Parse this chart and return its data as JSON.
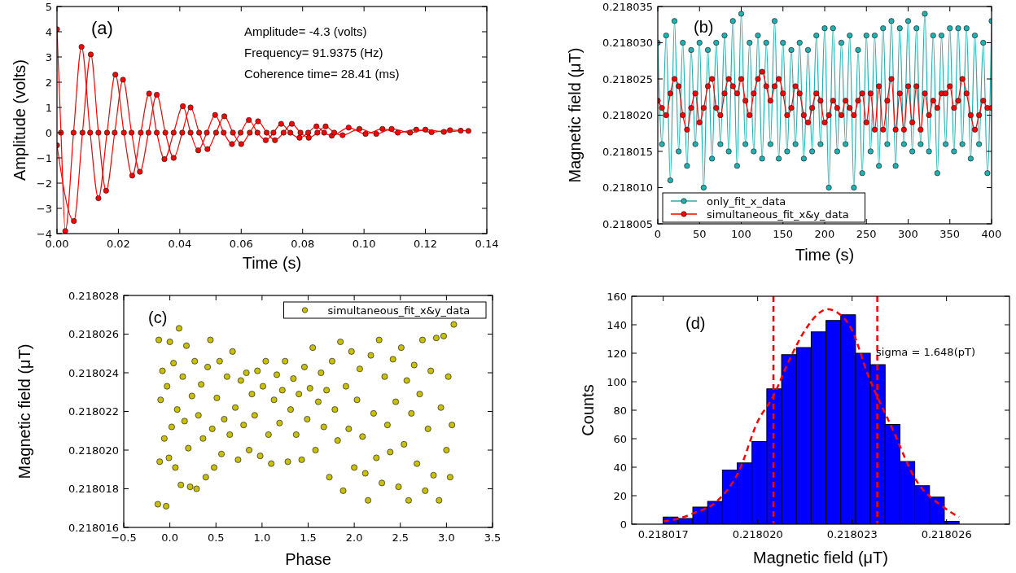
{
  "chart_data": [
    {
      "type": "line",
      "xlabel": "Time (s)",
      "ylabel": "Amplitude (volts)",
      "marker": "circle",
      "xlim": [
        0,
        0.14
      ],
      "ylim": [
        -4,
        5
      ],
      "xticks": [
        {
          "value": 0,
          "label": "0.00"
        },
        {
          "value": 0.02,
          "label": "0.02"
        },
        {
          "value": 0.04,
          "label": "0.04"
        },
        {
          "value": 0.06,
          "label": "0.06"
        },
        {
          "value": 0.08,
          "label": "0.08"
        },
        {
          "value": 0.1,
          "label": "0.10"
        },
        {
          "value": 0.12,
          "label": "0.12"
        },
        {
          "value": 0.14,
          "label": "0.14"
        }
      ],
      "yticks": [
        {
          "value": -4,
          "label": "−4"
        },
        {
          "value": -3,
          "label": "−3"
        },
        {
          "value": -2,
          "label": "−2"
        },
        {
          "value": -1,
          "label": "−1"
        },
        0,
        1,
        2,
        3,
        4,
        5
      ],
      "annotations": [
        "(a)",
        "Amplitude= -4.3 (volts)",
        "Frequency= 91.9375 (Hz)",
        "Coherence time= 28.41 (ms)"
      ],
      "series": [
        {
          "color": "#ff0000",
          "x": [
            0,
            0.0013,
            0.0027,
            0.0054,
            0.008,
            0.0108,
            0.0135,
            0.0163,
            0.019,
            0.0218,
            0.0245,
            0.0273,
            0.03,
            0.0325,
            0.035,
            0.038,
            0.041,
            0.0435,
            0.046,
            0.0488,
            0.0515,
            0.0543,
            0.057,
            0.0598,
            0.0625,
            0.0653,
            0.068,
            0.0705,
            0.073,
            0.076,
            0.079,
            0.0818,
            0.0845,
            0.087,
            0.0895,
            0.095,
            0.1005,
            0.106,
            0.111,
            0.117,
            0.122,
            0.128,
            0.134
          ],
          "values": [
            4.1,
            0,
            -3.9,
            0,
            3.4,
            0,
            -2.6,
            0,
            2.3,
            0,
            -1.7,
            0,
            1.55,
            0,
            -1.05,
            0,
            1.05,
            0,
            -0.7,
            0,
            0.7,
            0,
            -0.45,
            0,
            0.5,
            0,
            -0.3,
            0,
            0.35,
            0,
            -0.2,
            0,
            0.25,
            0,
            -0.12,
            0.2,
            -0.05,
            0.15,
            0,
            0.12,
            0.02,
            0.1,
            0.07
          ]
        },
        {
          "color": "#ff0000",
          "x": [
            0,
            0.0055,
            0.0083,
            0.011,
            0.0135,
            0.016,
            0.0188,
            0.0215,
            0.0243,
            0.027,
            0.0298,
            0.0325,
            0.0353,
            0.038,
            0.0408,
            0.0435,
            0.0463,
            0.049,
            0.0518,
            0.0545,
            0.0573,
            0.06,
            0.0628,
            0.0655,
            0.0683,
            0.071,
            0.0738,
            0.0765,
            0.0793,
            0.082,
            0.0848,
            0.0875,
            0.0903,
            0.093,
            0.0985,
            0.104,
            0.109,
            0.115,
            0.12,
            0.126,
            0.1315
          ],
          "values": [
            -0.5,
            -3.5,
            0,
            3.1,
            0,
            -2.3,
            0,
            2.1,
            0,
            -1.55,
            0,
            1.5,
            0,
            -1.0,
            0,
            1.0,
            0,
            -0.65,
            0,
            0.65,
            0,
            -0.45,
            0,
            0.45,
            0,
            -0.3,
            0,
            0.35,
            0,
            -0.2,
            0,
            0.25,
            0,
            -0.1,
            0.15,
            -0.05,
            0.15,
            0,
            0.12,
            0.03,
            0.08
          ]
        }
      ]
    },
    {
      "type": "line",
      "xlabel": "Time (s)",
      "ylabel": "Magnetic field (μT)",
      "marker": "circle",
      "legend": "bottom left",
      "xlim": [
        0,
        400
      ],
      "ylim": [
        0.218005,
        0.218035
      ],
      "xticks": [
        0,
        50,
        100,
        150,
        200,
        250,
        300,
        350,
        400
      ],
      "yticks": [
        0.218005,
        {
          "value": 0.21801,
          "label": "0.218010"
        },
        0.218015,
        {
          "value": 0.21802,
          "label": "0.218020"
        },
        0.218025,
        {
          "value": 0.21803,
          "label": "0.218030"
        },
        0.218035
      ],
      "annotations": [
        "(b)"
      ],
      "x": [
        0,
        5,
        10,
        15,
        20,
        25,
        30,
        35,
        40,
        45,
        50,
        55,
        60,
        65,
        70,
        75,
        80,
        85,
        90,
        95,
        100,
        105,
        110,
        115,
        120,
        125,
        130,
        135,
        140,
        145,
        150,
        155,
        160,
        165,
        170,
        175,
        180,
        185,
        190,
        195,
        200,
        205,
        210,
        215,
        220,
        225,
        230,
        235,
        240,
        245,
        250,
        255,
        260,
        265,
        270,
        275,
        280,
        285,
        290,
        295,
        300,
        305,
        310,
        315,
        320,
        325,
        330,
        335,
        340,
        345,
        350,
        355,
        360,
        365,
        370,
        375,
        380,
        385,
        390,
        395,
        400
      ],
      "series": [
        {
          "name": "only_fit_x_data",
          "color": "#20b2b2",
          "values": [
            0.21803,
            0.218016,
            0.218031,
            0.218011,
            0.218033,
            0.218015,
            0.21803,
            0.218013,
            0.218029,
            0.218016,
            0.21803,
            0.21801,
            0.218029,
            0.218014,
            0.21803,
            0.218016,
            0.218031,
            0.218015,
            0.218033,
            0.218013,
            0.218034,
            0.218016,
            0.21803,
            0.218015,
            0.218031,
            0.218014,
            0.21803,
            0.218016,
            0.218033,
            0.218014,
            0.21803,
            0.218015,
            0.218029,
            0.218016,
            0.21803,
            0.218014,
            0.218029,
            0.218015,
            0.218031,
            0.218016,
            0.218032,
            0.21801,
            0.218032,
            0.218015,
            0.21803,
            0.218016,
            0.218031,
            0.21801,
            0.218029,
            0.218012,
            0.218031,
            0.218015,
            0.218031,
            0.218013,
            0.218032,
            0.218016,
            0.218033,
            0.218013,
            0.218032,
            0.218016,
            0.218033,
            0.218015,
            0.218032,
            0.218016,
            0.218034,
            0.218015,
            0.218031,
            0.218012,
            0.218031,
            0.218016,
            0.218032,
            0.218015,
            0.218032,
            0.218016,
            0.218032,
            0.218014,
            0.218031,
            0.218016,
            0.21803,
            0.218012,
            0.218033
          ]
        },
        {
          "name": "simultaneous_fit_x&y_data",
          "color": "#ff0000",
          "values": [
            0.218022,
            0.218021,
            0.21802,
            0.218023,
            0.218025,
            0.218024,
            0.21802,
            0.218018,
            0.218021,
            0.218023,
            0.218019,
            0.218021,
            0.218024,
            0.218025,
            0.218021,
            0.21802,
            0.218023,
            0.218025,
            0.218024,
            0.218023,
            0.218025,
            0.218022,
            0.21802,
            0.218023,
            0.218025,
            0.218026,
            0.218024,
            0.218022,
            0.218024,
            0.218025,
            0.218023,
            0.21802,
            0.218021,
            0.218024,
            0.218023,
            0.21802,
            0.218019,
            0.218021,
            0.218023,
            0.218022,
            0.218019,
            0.21802,
            0.218022,
            0.218021,
            0.21802,
            0.218022,
            0.218021,
            0.21802,
            0.218022,
            0.218023,
            0.218019,
            0.218023,
            0.218018,
            0.218024,
            0.218018,
            0.218022,
            0.218025,
            0.218018,
            0.218023,
            0.218018,
            0.218024,
            0.218019,
            0.218024,
            0.218018,
            0.218023,
            0.21802,
            0.218022,
            0.218021,
            0.218023,
            0.218023,
            0.218024,
            0.218021,
            0.218022,
            0.218025,
            0.218023,
            0.21802,
            0.218018,
            0.21802,
            0.218022,
            0.218021,
            0.218021
          ]
        }
      ]
    },
    {
      "type": "scatter",
      "xlabel": "Phase",
      "ylabel": "Magnetic field (μT)",
      "marker": "circle",
      "legend": "top right",
      "xlim": [
        -0.5,
        3.5
      ],
      "ylim": [
        0.218016,
        0.218028
      ],
      "xticks": [
        {
          "value": -0.5,
          "label": "−0.5"
        },
        {
          "value": 0,
          "label": "0.0"
        },
        0.5,
        {
          "value": 1,
          "label": "1.0"
        },
        1.5,
        {
          "value": 2,
          "label": "2.0"
        },
        2.5,
        {
          "value": 3,
          "label": "3.0"
        },
        3.5
      ],
      "yticks": [
        0.218016,
        0.218018,
        {
          "value": 0.21802,
          "label": "0.218020"
        },
        0.218022,
        0.218024,
        0.218026,
        0.218028
      ],
      "annotations": [
        "(c)"
      ],
      "series": [
        {
          "name": "simultaneous_fit_x&y_data",
          "color": "#c8c000",
          "x": [
            -0.13,
            -0.12,
            -0.11,
            -0.1,
            -0.08,
            -0.06,
            -0.04,
            -0.03,
            -0.01,
            0,
            0.02,
            0.04,
            0.06,
            0.08,
            0.1,
            0.12,
            0.14,
            0.16,
            0.18,
            0.2,
            0.22,
            0.24,
            0.27,
            0.29,
            0.31,
            0.34,
            0.36,
            0.39,
            0.41,
            0.44,
            0.46,
            0.48,
            0.51,
            0.54,
            0.56,
            0.59,
            0.62,
            0.65,
            0.68,
            0.71,
            0.74,
            0.77,
            0.8,
            0.83,
            0.86,
            0.89,
            0.92,
            0.95,
            0.98,
            1.01,
            1.04,
            1.07,
            1.1,
            1.13,
            1.16,
            1.19,
            1.22,
            1.25,
            1.28,
            1.31,
            1.34,
            1.37,
            1.4,
            1.43,
            1.46,
            1.49,
            1.52,
            1.55,
            1.58,
            1.61,
            1.64,
            1.67,
            1.7,
            1.73,
            1.76,
            1.79,
            1.82,
            1.85,
            1.88,
            1.91,
            1.94,
            1.97,
            2,
            2.03,
            2.06,
            2.09,
            2.12,
            2.15,
            2.18,
            2.21,
            2.24,
            2.27,
            2.3,
            2.33,
            2.36,
            2.39,
            2.42,
            2.45,
            2.48,
            2.51,
            2.54,
            2.57,
            2.59,
            2.62,
            2.65,
            2.68,
            2.71,
            2.74,
            2.77,
            2.8,
            2.83,
            2.86,
            2.89,
            2.92,
            2.94,
            2.97,
            3,
            3.02,
            3.04,
            3.06,
            3.08
          ],
          "values": [
            0.2180172,
            0.2180257,
            0.2180194,
            0.2180226,
            0.2180241,
            0.2180206,
            0.2180171,
            0.2180233,
            0.2180196,
            0.2180256,
            0.2180212,
            0.2180245,
            0.2180191,
            0.2180221,
            0.2180263,
            0.2180182,
            0.2180238,
            0.2180215,
            0.2180254,
            0.2180201,
            0.2180181,
            0.2180228,
            0.2180246,
            0.218018,
            0.2180218,
            0.2180234,
            0.2180206,
            0.2180186,
            0.2180243,
            0.2180257,
            0.2180211,
            0.2180191,
            0.2180227,
            0.2180246,
            0.2180198,
            0.2180216,
            0.2180238,
            0.2180208,
            0.2180251,
            0.2180222,
            0.2180195,
            0.2180236,
            0.2180213,
            0.218024,
            0.21802,
            0.2180229,
            0.2180218,
            0.2180241,
            0.2180197,
            0.2180233,
            0.2180246,
            0.2180208,
            0.2180193,
            0.2180226,
            0.2180239,
            0.2180214,
            0.2180231,
            0.2180246,
            0.2180194,
            0.2180221,
            0.2180237,
            0.2180208,
            0.2180229,
            0.2180195,
            0.2180243,
            0.2180216,
            0.2180232,
            0.2180253,
            0.21802,
            0.2180225,
            0.218024,
            0.2180212,
            0.2180231,
            0.2180186,
            0.2180246,
            0.2180221,
            0.2180205,
            0.2180256,
            0.2180179,
            0.2180233,
            0.2180211,
            0.2180251,
            0.2180191,
            0.2180226,
            0.2180242,
            0.2180207,
            0.2180188,
            0.2180174,
            0.2180249,
            0.2180219,
            0.2180196,
            0.2180257,
            0.2180183,
            0.2180238,
            0.2180213,
            0.2180199,
            0.2180247,
            0.2180225,
            0.2180181,
            0.2180253,
            0.2180203,
            0.2180236,
            0.2180174,
            0.2180219,
            0.2180244,
            0.2180193,
            0.2180229,
            0.2180257,
            0.2180179,
            0.2180211,
            0.2180241,
            0.2180187,
            0.2180258,
            0.2180174,
            0.2180222,
            0.2180259,
            0.21802,
            0.2180238,
            0.2180186,
            0.2180213,
            0.2180265
          ]
        }
      ]
    },
    {
      "type": "histogram",
      "xlabel": "Magnetic field (μT)",
      "ylabel": "Counts",
      "xlim": [
        0.218016,
        0.218028
      ],
      "ylim": [
        0,
        160
      ],
      "xticks": [
        0.218017,
        {
          "value": 0.21802,
          "label": "0.218020"
        },
        0.218023,
        0.218026
      ],
      "yticks": [
        0,
        20,
        40,
        60,
        80,
        100,
        120,
        140,
        160
      ],
      "annotations": [
        "(d)",
        "sigma = 1.648(pT)"
      ],
      "ref_lines": [
        {
          "axis": "x",
          "value": 0.2180205,
          "color": "#ff0000",
          "line_style": "dashed"
        },
        {
          "axis": "x",
          "value": 0.2180238,
          "color": "#ff0000",
          "line_style": "dashed"
        }
      ],
      "series": [
        {
          "type": "histogram",
          "color": "#0000ff",
          "bins": [
            0.218017,
            0.21801747,
            0.21801794,
            0.21801841,
            0.21801888,
            0.21801935,
            0.21801982,
            0.21802029,
            0.21802076,
            0.21802123,
            0.2180217,
            0.21802217,
            0.21802264,
            0.21802311,
            0.21802358,
            0.21802405,
            0.21802452,
            0.21802499,
            0.21802546,
            0.21802593,
            0.2180264
          ],
          "values": [
            5,
            4,
            12,
            16,
            38,
            43,
            58,
            95,
            119,
            124,
            135,
            143,
            147,
            120,
            112,
            70,
            44,
            27,
            19,
            2
          ]
        },
        {
          "type": "line",
          "color": "#ff0000",
          "line_style": "dashed",
          "marker": "none",
          "x": [
            0.218017,
            0.2180175,
            0.218018,
            0.2180187,
            0.2180194,
            0.21802,
            0.2180205,
            0.218021,
            0.2180215,
            0.218022,
            0.2180222,
            0.2180225,
            0.218023,
            0.2180235,
            0.2180243,
            0.218025,
            0.2180259,
            0.2180264
          ],
          "values": [
            2,
            4,
            8,
            16,
            37,
            72,
            90,
            115,
            136,
            149,
            151,
            149,
            136,
            105,
            66,
            32,
            12,
            5
          ]
        }
      ]
    }
  ]
}
